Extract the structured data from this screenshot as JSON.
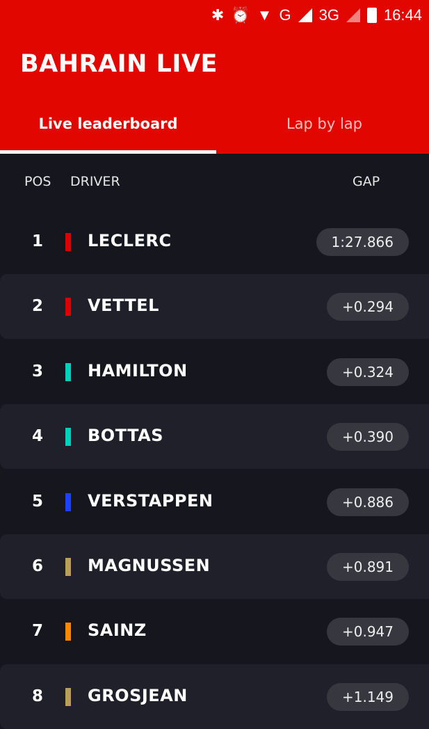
{
  "status_bar": {
    "time": "16:44",
    "network1": "G",
    "network2": "3G",
    "icons": [
      "bluetooth-icon",
      "alarm-icon",
      "wifi-icon",
      "signal-icon",
      "battery-charging-icon"
    ]
  },
  "header": {
    "title": "BAHRAIN LIVE",
    "tabs": [
      {
        "label": "Live leaderboard",
        "active": true
      },
      {
        "label": "Lap by lap",
        "active": false
      }
    ],
    "color": "#e10600"
  },
  "columns": {
    "pos": "POS",
    "driver": "DRIVER",
    "gap": "GAP"
  },
  "rows": [
    {
      "pos": "1",
      "driver": "LECLERC",
      "gap": "1:27.866",
      "team_color": "#dc0000"
    },
    {
      "pos": "2",
      "driver": "VETTEL",
      "gap": "+0.294",
      "team_color": "#dc0000"
    },
    {
      "pos": "3",
      "driver": "HAMILTON",
      "gap": "+0.324",
      "team_color": "#00d2be"
    },
    {
      "pos": "4",
      "driver": "BOTTAS",
      "gap": "+0.390",
      "team_color": "#00d2be"
    },
    {
      "pos": "5",
      "driver": "VERSTAPPEN",
      "gap": "+0.886",
      "team_color": "#1e41ff"
    },
    {
      "pos": "6",
      "driver": "MAGNUSSEN",
      "gap": "+0.891",
      "team_color": "#bd9e57"
    },
    {
      "pos": "7",
      "driver": "SAINZ",
      "gap": "+0.947",
      "team_color": "#ff8700"
    },
    {
      "pos": "8",
      "driver": "GROSJEAN",
      "gap": "+1.149",
      "team_color": "#bd9e57"
    }
  ]
}
